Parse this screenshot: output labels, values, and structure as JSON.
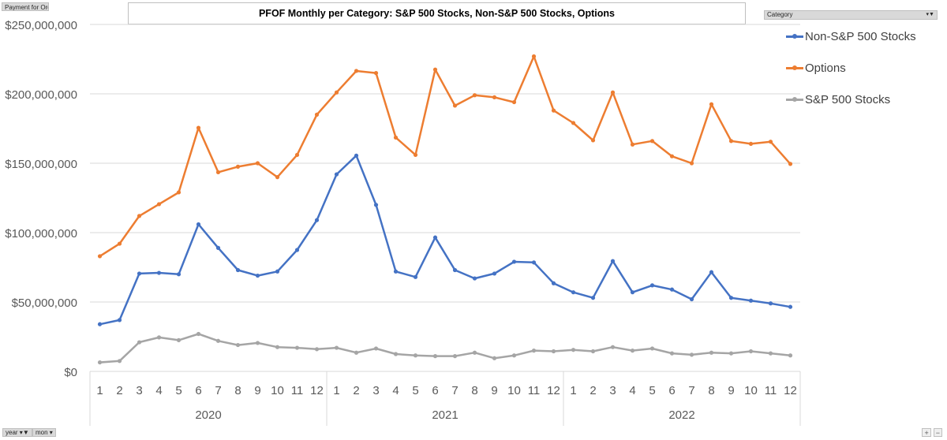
{
  "field_label": "Payment for Order Flow",
  "category_filter": "Category",
  "bottom_filters": {
    "year": "year",
    "month": "mon"
  },
  "zoom": {
    "plus": "+",
    "minus": "−"
  },
  "colors": {
    "non_sp500": "#4472c4",
    "options": "#ed7d31",
    "sp500": "#a5a5a5",
    "grid": "#d9d9d9",
    "axis_text": "#595959"
  },
  "chart_data": {
    "type": "line",
    "title": "PFOF Monthly per Category: S&P 500 Stocks, Non-S&P 500 Stocks, Options",
    "xlabel": "",
    "ylabel": "",
    "ylim": [
      0,
      250000000
    ],
    "yticks": [
      0,
      50000000,
      100000000,
      150000000,
      200000000,
      250000000
    ],
    "ytick_labels": [
      "$0",
      "$50,000,000",
      "$100,000,000",
      "$150,000,000",
      "$200,000,000",
      "$250,000,000"
    ],
    "grid": true,
    "legend_position": "top-right",
    "years": [
      "2020",
      "2021",
      "2022"
    ],
    "months": [
      "1",
      "2",
      "3",
      "4",
      "5",
      "6",
      "7",
      "8",
      "9",
      "10",
      "11",
      "12"
    ],
    "series": [
      {
        "name": "Non-S&P 500 Stocks",
        "values": [
          34000000,
          37000000,
          70500000,
          71000000,
          70000000,
          106000000,
          89000000,
          73000000,
          69000000,
          72000000,
          87500000,
          109000000,
          142000000,
          155500000,
          120000000,
          72000000,
          68000000,
          96500000,
          73000000,
          67000000,
          70500000,
          79000000,
          78500000,
          63500000,
          57000000,
          53000000,
          79500000,
          57000000,
          62000000,
          59000000,
          52000000,
          71500000,
          53000000,
          51000000,
          49000000,
          46500000
        ]
      },
      {
        "name": "Options",
        "values": [
          83000000,
          92000000,
          112000000,
          120500000,
          129000000,
          175500000,
          143500000,
          147500000,
          150000000,
          140000000,
          156000000,
          185000000,
          201000000,
          216500000,
          215000000,
          168500000,
          156000000,
          217500000,
          191500000,
          199000000,
          197500000,
          194000000,
          227000000,
          188000000,
          179000000,
          166500000,
          201000000,
          163500000,
          166000000,
          155000000,
          150000000,
          192500000,
          166000000,
          164000000,
          165500000,
          149500000
        ]
      },
      {
        "name": "S&P 500 Stocks",
        "values": [
          6500000,
          7500000,
          21000000,
          24500000,
          22500000,
          27000000,
          22000000,
          19000000,
          20500000,
          17500000,
          17000000,
          16000000,
          17000000,
          13500000,
          16500000,
          12500000,
          11500000,
          11000000,
          11000000,
          13500000,
          9500000,
          11500000,
          15000000,
          14500000,
          15500000,
          14500000,
          17500000,
          15000000,
          16500000,
          13000000,
          12000000,
          13500000,
          13000000,
          14500000,
          13000000,
          11500000
        ]
      }
    ]
  }
}
